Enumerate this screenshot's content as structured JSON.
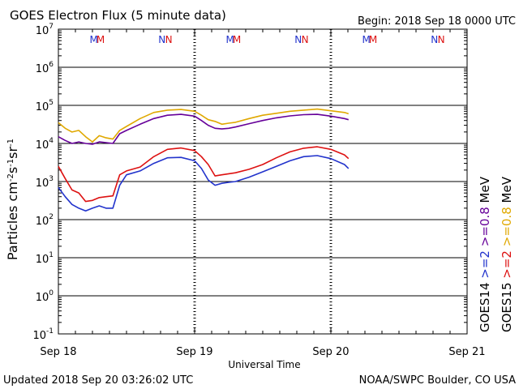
{
  "header": {
    "title": "GOES Electron Flux (5 minute data)",
    "begin": "Begin: 2018 Sep 18 0000 UTC"
  },
  "footer": {
    "updated": "Updated 2018 Sep 20 03:26:02 UTC",
    "source": "NOAA/SWPC Boulder, CO USA"
  },
  "chart_data": {
    "type": "line",
    "title": "GOES Electron Flux (5 minute data)",
    "xlabel": "Universal Time",
    "ylabel_html": "Particles cm<tspan baseline-shift=\"super\" font-size=\"10\">-2</tspan>s<tspan baseline-shift=\"super\" font-size=\"10\">-1</tspan>sr<tspan baseline-shift=\"super\" font-size=\"10\">-1</tspan>",
    "x_unit": "days since 2018 Sep 18 0000 UTC",
    "xlim": [
      0,
      3
    ],
    "y_scale": "log",
    "ylim": [
      0.1,
      10000000
    ],
    "x_ticks": [
      {
        "value": 0,
        "label": "Sep 18"
      },
      {
        "value": 1,
        "label": "Sep 19"
      },
      {
        "value": 2,
        "label": "Sep 20"
      },
      {
        "value": 3,
        "label": "Sep 21"
      }
    ],
    "y_ticks": [
      {
        "exp": 7,
        "base": "10",
        "sup": "7"
      },
      {
        "exp": 6,
        "base": "10",
        "sup": "6"
      },
      {
        "exp": 5,
        "base": "10",
        "sup": "5"
      },
      {
        "exp": 4,
        "base": "10",
        "sup": "4"
      },
      {
        "exp": 3,
        "base": "10",
        "sup": "3"
      },
      {
        "exp": 2,
        "base": "10",
        "sup": "2"
      },
      {
        "exp": 1,
        "base": "10",
        "sup": "1"
      },
      {
        "exp": 0,
        "base": "10",
        "sup": "0"
      },
      {
        "exp": -1,
        "base": "10",
        "sup": "-1"
      }
    ],
    "threshold": 1000,
    "markers": [
      {
        "label": "M",
        "day": 0.26,
        "color": "#2233cc"
      },
      {
        "label": "M",
        "day": 0.31,
        "color": "#dd1111"
      },
      {
        "label": "N",
        "day": 0.76,
        "color": "#2233cc"
      },
      {
        "label": "N",
        "day": 0.81,
        "color": "#dd1111"
      },
      {
        "label": "M",
        "day": 1.26,
        "color": "#2233cc"
      },
      {
        "label": "M",
        "day": 1.31,
        "color": "#dd1111"
      },
      {
        "label": "N",
        "day": 1.76,
        "color": "#2233cc"
      },
      {
        "label": "N",
        "day": 1.81,
        "color": "#dd1111"
      },
      {
        "label": "M",
        "day": 2.26,
        "color": "#2233cc"
      },
      {
        "label": "M",
        "day": 2.31,
        "color": "#dd1111"
      },
      {
        "label": "N",
        "day": 2.76,
        "color": "#2233cc"
      },
      {
        "label": "N",
        "day": 2.81,
        "color": "#dd1111"
      }
    ],
    "right_legend": [
      {
        "text": "GOES15",
        "color": "#000000"
      },
      {
        "text": ">=2",
        "color": "#dd1111"
      },
      {
        "text": ">=0.8",
        "color": "#e0a800"
      },
      {
        "text": "MeV",
        "color": "#000000"
      },
      {
        "text": "GOES14",
        "color": "#000000"
      },
      {
        "text": ">=2",
        "color": "#2233cc"
      },
      {
        "text": ">=0.8",
        "color": "#660099"
      },
      {
        "text": "MeV",
        "color": "#000000"
      }
    ],
    "series": [
      {
        "name": "GOES15 >=0.8 MeV",
        "color": "#e0a800",
        "points": [
          [
            0.0,
            35000
          ],
          [
            0.05,
            25000
          ],
          [
            0.1,
            20000
          ],
          [
            0.15,
            22000
          ],
          [
            0.2,
            15000
          ],
          [
            0.25,
            11000
          ],
          [
            0.3,
            16000
          ],
          [
            0.35,
            14000
          ],
          [
            0.4,
            13000
          ],
          [
            0.45,
            22000
          ],
          [
            0.5,
            28000
          ],
          [
            0.6,
            45000
          ],
          [
            0.7,
            65000
          ],
          [
            0.8,
            75000
          ],
          [
            0.9,
            78000
          ],
          [
            1.0,
            70000
          ],
          [
            1.05,
            55000
          ],
          [
            1.1,
            42000
          ],
          [
            1.15,
            38000
          ],
          [
            1.2,
            32000
          ],
          [
            1.25,
            34000
          ],
          [
            1.3,
            36000
          ],
          [
            1.4,
            45000
          ],
          [
            1.5,
            55000
          ],
          [
            1.6,
            62000
          ],
          [
            1.7,
            70000
          ],
          [
            1.8,
            75000
          ],
          [
            1.9,
            80000
          ],
          [
            2.0,
            72000
          ],
          [
            2.1,
            65000
          ],
          [
            2.13,
            60000
          ]
        ]
      },
      {
        "name": "GOES15 >=2 MeV",
        "color": "#dd1111",
        "points": [
          [
            0.0,
            2500
          ],
          [
            0.05,
            1200
          ],
          [
            0.1,
            600
          ],
          [
            0.15,
            500
          ],
          [
            0.2,
            300
          ],
          [
            0.25,
            320
          ],
          [
            0.3,
            380
          ],
          [
            0.35,
            400
          ],
          [
            0.4,
            420
          ],
          [
            0.45,
            1500
          ],
          [
            0.5,
            1900
          ],
          [
            0.6,
            2400
          ],
          [
            0.7,
            4500
          ],
          [
            0.8,
            7000
          ],
          [
            0.9,
            7600
          ],
          [
            1.0,
            6500
          ],
          [
            1.05,
            4500
          ],
          [
            1.1,
            2800
          ],
          [
            1.15,
            1400
          ],
          [
            1.2,
            1500
          ],
          [
            1.25,
            1600
          ],
          [
            1.3,
            1700
          ],
          [
            1.4,
            2100
          ],
          [
            1.5,
            2800
          ],
          [
            1.6,
            4200
          ],
          [
            1.7,
            6000
          ],
          [
            1.8,
            7500
          ],
          [
            1.9,
            8200
          ],
          [
            2.0,
            7000
          ],
          [
            2.1,
            5000
          ],
          [
            2.13,
            4000
          ]
        ]
      },
      {
        "name": "GOES14 >=0.8 MeV",
        "color": "#660099",
        "points": [
          [
            0.0,
            15000
          ],
          [
            0.05,
            12000
          ],
          [
            0.1,
            10000
          ],
          [
            0.15,
            11000
          ],
          [
            0.2,
            10000
          ],
          [
            0.25,
            9500
          ],
          [
            0.3,
            11000
          ],
          [
            0.35,
            10500
          ],
          [
            0.4,
            10000
          ],
          [
            0.45,
            18000
          ],
          [
            0.5,
            22000
          ],
          [
            0.6,
            32000
          ],
          [
            0.7,
            45000
          ],
          [
            0.8,
            55000
          ],
          [
            0.9,
            58000
          ],
          [
            1.0,
            52000
          ],
          [
            1.05,
            40000
          ],
          [
            1.1,
            30000
          ],
          [
            1.15,
            25000
          ],
          [
            1.2,
            24000
          ],
          [
            1.25,
            25000
          ],
          [
            1.3,
            27000
          ],
          [
            1.4,
            33000
          ],
          [
            1.5,
            40000
          ],
          [
            1.6,
            47000
          ],
          [
            1.7,
            53000
          ],
          [
            1.8,
            57000
          ],
          [
            1.9,
            58000
          ],
          [
            2.0,
            52000
          ],
          [
            2.1,
            45000
          ],
          [
            2.13,
            42000
          ]
        ]
      },
      {
        "name": "GOES14 >=2 MeV",
        "color": "#2233cc",
        "points": [
          [
            0.0,
            700
          ],
          [
            0.05,
            400
          ],
          [
            0.1,
            250
          ],
          [
            0.15,
            200
          ],
          [
            0.2,
            170
          ],
          [
            0.25,
            200
          ],
          [
            0.3,
            230
          ],
          [
            0.35,
            200
          ],
          [
            0.4,
            200
          ],
          [
            0.45,
            800
          ],
          [
            0.5,
            1500
          ],
          [
            0.6,
            1900
          ],
          [
            0.7,
            3000
          ],
          [
            0.8,
            4200
          ],
          [
            0.9,
            4300
          ],
          [
            1.0,
            3500
          ],
          [
            1.05,
            2200
          ],
          [
            1.1,
            1100
          ],
          [
            1.15,
            800
          ],
          [
            1.2,
            900
          ],
          [
            1.25,
            950
          ],
          [
            1.3,
            1000
          ],
          [
            1.4,
            1300
          ],
          [
            1.5,
            1800
          ],
          [
            1.6,
            2500
          ],
          [
            1.7,
            3500
          ],
          [
            1.8,
            4500
          ],
          [
            1.9,
            4800
          ],
          [
            2.0,
            4000
          ],
          [
            2.1,
            2800
          ],
          [
            2.13,
            2200
          ]
        ]
      }
    ]
  }
}
